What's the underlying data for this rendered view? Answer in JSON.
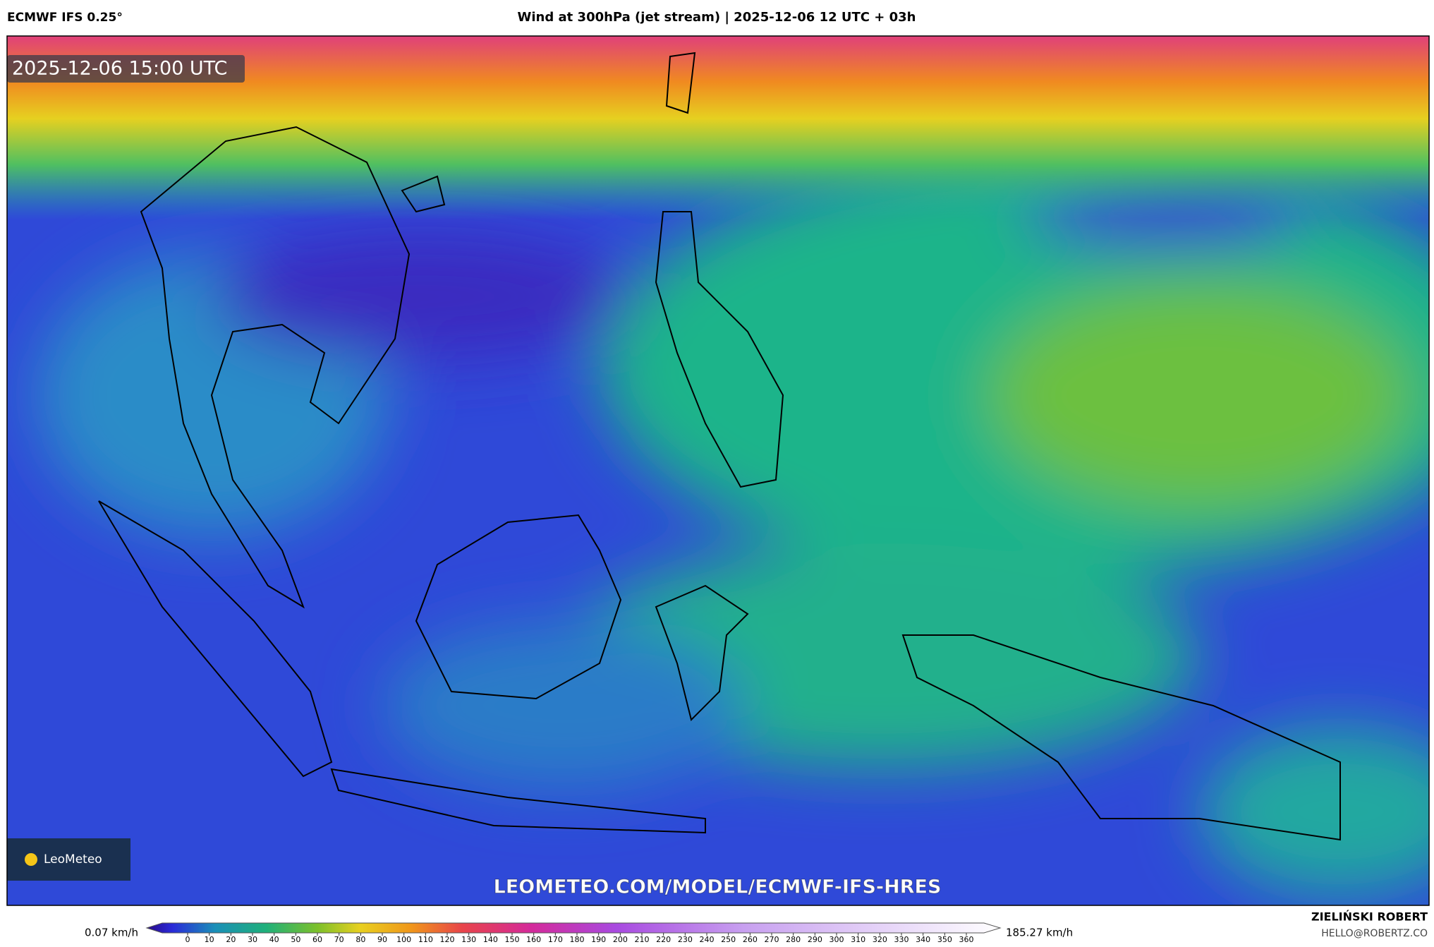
{
  "header": {
    "model": "ECMWF IFS 0.25°",
    "title": "Wind at 300hPa (jet stream) | 2025-12-06 12 UTC + 03h"
  },
  "map": {
    "timestamp": "2025-12-06 15:00 UTC",
    "logo": "LeoMeteo",
    "url": "LEOMETEO.COM/MODEL/ECMWF-IFS-HRES"
  },
  "colorbar": {
    "min_label": "0.07 km/h",
    "max_label": "185.27 km/h",
    "ticks": [
      0,
      10,
      20,
      30,
      40,
      50,
      60,
      70,
      80,
      90,
      100,
      110,
      120,
      130,
      140,
      150,
      160,
      170,
      180,
      190,
      200,
      210,
      220,
      230,
      240,
      250,
      260,
      270,
      280,
      290,
      300,
      310,
      320,
      330,
      340,
      350,
      360
    ]
  },
  "footer": {
    "author": "ZIELIŃSKI ROBERT",
    "email": "HELLO@ROBERTZ.CO"
  }
}
